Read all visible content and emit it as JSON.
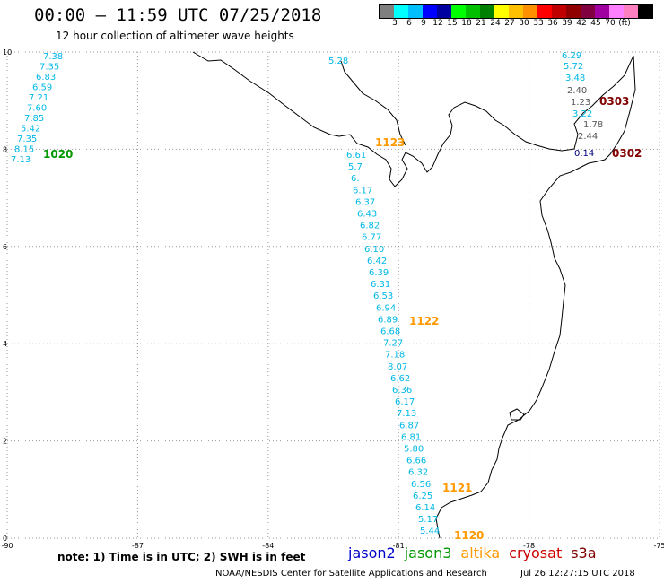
{
  "header": {
    "title": "00:00 – 11:59 UTC 07/25/2018",
    "subtitle": "12 hour collection of altimeter wave heights"
  },
  "colorbar": {
    "colors": [
      "#7f7f7f",
      "#00ffff",
      "#00bfff",
      "#0000ff",
      "#0000a0",
      "#00ff00",
      "#00c000",
      "#008000",
      "#ffff00",
      "#ffc000",
      "#ff9000",
      "#ff0000",
      "#c00000",
      "#900000",
      "#800040",
      "#a000a0",
      "#ff80ff",
      "#ff80c0",
      "#000000"
    ],
    "labels": [
      "3",
      "6",
      "9",
      "12",
      "15",
      "18",
      "21",
      "24",
      "27",
      "30",
      "33",
      "36",
      "39",
      "42",
      "45",
      "70",
      "(ft)"
    ]
  },
  "map": {
    "lon_range": [
      -90,
      -75
    ],
    "lat_range": [
      0,
      10
    ],
    "lon_ticks": [
      "-90",
      "-87",
      "-84",
      "-81",
      "-78",
      "-75"
    ],
    "lat_ticks": [
      "0",
      "2",
      "4",
      "6",
      "8",
      "10"
    ],
    "lat_tick_values": [
      0,
      2,
      4,
      6,
      8,
      10
    ],
    "lon_tick_values": [
      -90,
      -87,
      -84,
      -81,
      -78,
      -75
    ]
  },
  "colors": {
    "jason2": "#0000cc",
    "jason3": "#009900",
    "altika": "#ff9900",
    "cryosat": "#cc0000",
    "s3a": "#800000",
    "cyan_text": "#00b8e6",
    "gray_text": "#555555",
    "grid": "#999999"
  },
  "tracks": {
    "track_1020": {
      "time": "1020",
      "heights": [
        "7.38",
        "7.35",
        "6.83",
        "6.59",
        "7.21",
        "7.60",
        "7.85",
        "5.42",
        "7.35",
        "8.15",
        "7.13"
      ]
    },
    "track_1123": {
      "time": "1123",
      "heights": [
        "6.61",
        "5.7",
        "6.",
        "6.17",
        "6.37",
        "6.43",
        "6.82",
        "6.77",
        "6.10",
        "6.42",
        "6.39",
        "6.31",
        "6.53",
        "6.94",
        "6.89",
        "6.68",
        "7.27",
        "7.18",
        "8.07",
        "6.62",
        "6.36",
        "6.17",
        "7.13",
        "6.87",
        "6.81",
        "5.80",
        "6.66",
        "6.32",
        "6.56",
        "6.25",
        "6.14",
        "5.17",
        "5.44"
      ]
    },
    "track_1122": {
      "time": "1122"
    },
    "track_1121": {
      "time": "1121"
    },
    "track_1120": {
      "time": "1120"
    },
    "track_0303": {
      "time": "0303",
      "heights": [
        "6.29",
        "5.72",
        "3.48",
        "2.40",
        "1.23",
        "3.22",
        "1.78",
        "2.44",
        "0.14"
      ]
    },
    "track_0302": {
      "time": "0302"
    },
    "isolated": {
      "height": "5.28"
    }
  },
  "footer": {
    "note": "note:  1) Time is in UTC;  2) SWH is in feet",
    "legend": [
      {
        "label": "jason2",
        "color": "#0000cc"
      },
      {
        "label": "jason3",
        "color": "#009900"
      },
      {
        "label": "altika",
        "color": "#ff9900"
      },
      {
        "label": "cryosat",
        "color": "#cc0000"
      },
      {
        "label": "s3a",
        "color": "#800000"
      }
    ],
    "credit": "NOAA/NESDIS Center for Satellite Applications and Research",
    "timestamp": "Jul 26 12:27:15 UTC 2018"
  }
}
